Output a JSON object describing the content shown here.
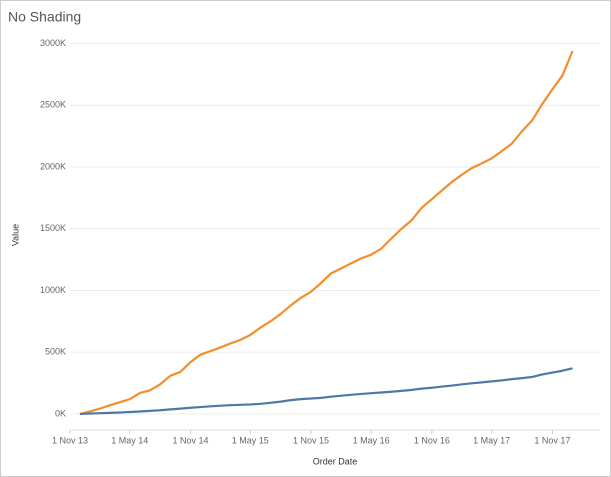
{
  "chart_data": {
    "type": "line",
    "title": "No Shading",
    "xlabel": "Order Date",
    "ylabel": "Value",
    "x": [
      "2013-12-01",
      "2014-01-01",
      "2014-02-01",
      "2014-03-01",
      "2014-04-01",
      "2014-05-01",
      "2014-06-01",
      "2014-07-01",
      "2014-08-01",
      "2014-09-01",
      "2014-10-01",
      "2014-11-01",
      "2014-12-01",
      "2015-01-01",
      "2015-02-01",
      "2015-03-01",
      "2015-04-01",
      "2015-05-01",
      "2015-06-01",
      "2015-07-01",
      "2015-08-01",
      "2015-09-01",
      "2015-10-01",
      "2015-11-01",
      "2015-12-01",
      "2016-01-01",
      "2016-02-01",
      "2016-03-01",
      "2016-04-01",
      "2016-05-01",
      "2016-06-01",
      "2016-07-01",
      "2016-08-01",
      "2016-09-01",
      "2016-10-01",
      "2016-11-01",
      "2016-12-01",
      "2017-01-01",
      "2017-02-01",
      "2017-03-01",
      "2017-04-01",
      "2017-05-01",
      "2017-06-01",
      "2017-07-01",
      "2017-08-01",
      "2017-09-01",
      "2017-10-01",
      "2017-11-01",
      "2017-12-01",
      "2018-01-01"
    ],
    "series": [
      {
        "color": "#f28e2b",
        "values": [
          0,
          20000,
          45000,
          70000,
          95000,
          120000,
          170000,
          190000,
          240000,
          310000,
          340000,
          420000,
          480000,
          510000,
          540000,
          570000,
          600000,
          640000,
          700000,
          750000,
          810000,
          880000,
          940000,
          990000,
          1060000,
          1140000,
          1180000,
          1220000,
          1260000,
          1290000,
          1340000,
          1420000,
          1500000,
          1570000,
          1670000,
          1740000,
          1810000,
          1880000,
          1940000,
          1990000,
          2030000,
          2070000,
          2130000,
          2190000,
          2290000,
          2380000,
          2510000,
          2630000,
          2740000,
          2940000
        ]
      },
      {
        "color": "#4e79a7",
        "values": [
          0,
          3000,
          6000,
          9000,
          12000,
          16000,
          20000,
          25000,
          30000,
          37000,
          43000,
          50000,
          56000,
          62000,
          67000,
          71000,
          74000,
          77000,
          82000,
          90000,
          100000,
          112000,
          120000,
          125000,
          130000,
          140000,
          148000,
          155000,
          162000,
          168000,
          174000,
          180000,
          187000,
          195000,
          205000,
          212000,
          222000,
          230000,
          240000,
          248000,
          256000,
          264000,
          272000,
          282000,
          290000,
          300000,
          320000,
          335000,
          350000,
          370000
        ]
      }
    ],
    "xlim": [
      "2013-11-01",
      "2018-03-25"
    ],
    "xticks": [
      {
        "value": "2013-11-01",
        "label": "1 Nov 13"
      },
      {
        "value": "2014-05-01",
        "label": "1 May 14"
      },
      {
        "value": "2014-11-01",
        "label": "1 Nov 14"
      },
      {
        "value": "2015-05-01",
        "label": "1 May 15"
      },
      {
        "value": "2015-11-01",
        "label": "1 Nov 15"
      },
      {
        "value": "2016-05-01",
        "label": "1 May 16"
      },
      {
        "value": "2016-11-01",
        "label": "1 Nov 16"
      },
      {
        "value": "2017-05-01",
        "label": "1 May 17"
      },
      {
        "value": "2017-11-01",
        "label": "1 Nov 17"
      }
    ],
    "ylim": [
      -130000,
      3110000
    ],
    "yticks": [
      {
        "value": 0,
        "label": "0K"
      },
      {
        "value": 500000,
        "label": "500K"
      },
      {
        "value": 1000000,
        "label": "1000K"
      },
      {
        "value": 1500000,
        "label": "1500K"
      },
      {
        "value": 2000000,
        "label": "2000K"
      },
      {
        "value": 2500000,
        "label": "2500K"
      },
      {
        "value": 3000000,
        "label": "3000K"
      }
    ],
    "grid": true
  }
}
